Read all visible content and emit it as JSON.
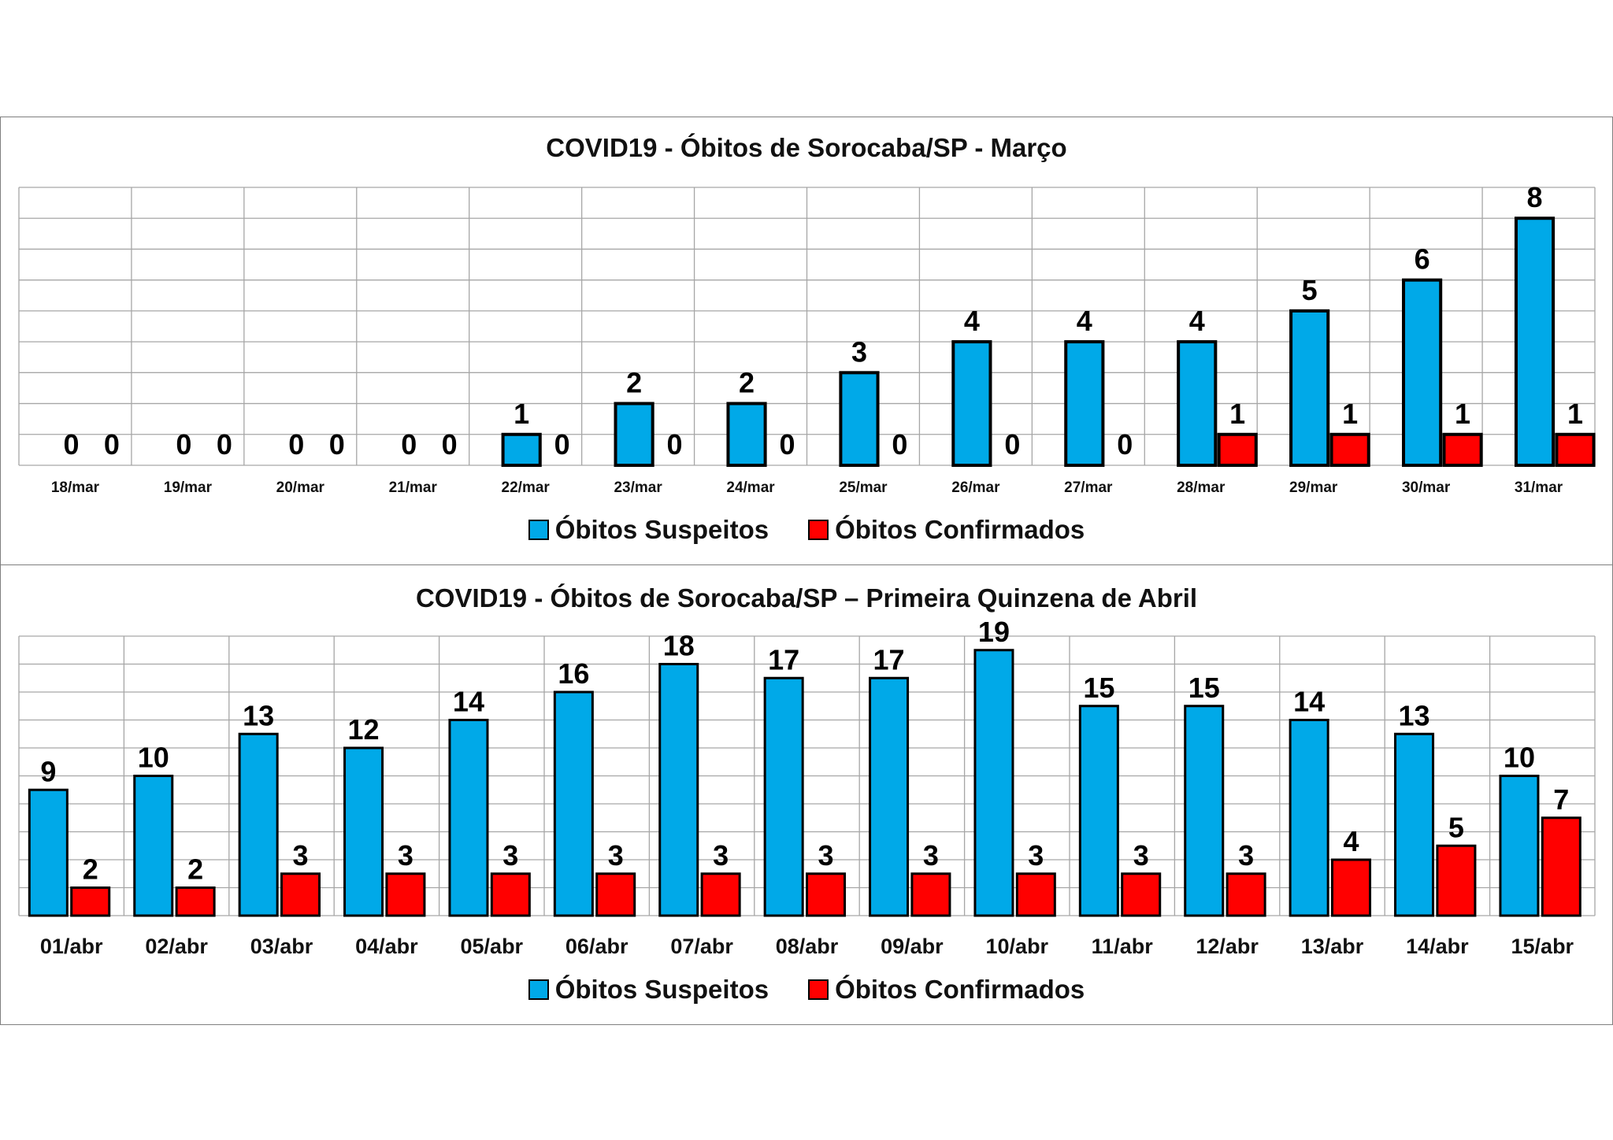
{
  "colors": {
    "suspeitos": "#00a9e8",
    "confirmados": "#ff0000",
    "grid": "#a6a6a6",
    "border": "#000000"
  },
  "chart_data": [
    {
      "type": "bar",
      "title": "COVID19 - Óbitos  de Sorocaba/SP - Março",
      "categories": [
        "18/mar",
        "19/mar",
        "20/mar",
        "21/mar",
        "22/mar",
        "23/mar",
        "24/mar",
        "25/mar",
        "26/mar",
        "27/mar",
        "28/mar",
        "29/mar",
        "30/mar",
        "31/mar"
      ],
      "series": [
        {
          "name": "Óbitos Suspeitos",
          "values": [
            0,
            0,
            0,
            0,
            1,
            2,
            2,
            3,
            4,
            4,
            4,
            5,
            6,
            8
          ]
        },
        {
          "name": "Óbitos Confirmados",
          "values": [
            0,
            0,
            0,
            0,
            0,
            0,
            0,
            0,
            0,
            0,
            1,
            1,
            1,
            1
          ]
        }
      ],
      "ylim": [
        0,
        9
      ],
      "grid": true,
      "legend": "bottom-center",
      "xlabel": "",
      "ylabel": ""
    },
    {
      "type": "bar",
      "title": "COVID19 - Óbitos  de Sorocaba/SP – Primeira Quinzena de Abril",
      "categories": [
        "01/abr",
        "02/abr",
        "03/abr",
        "04/abr",
        "05/abr",
        "06/abr",
        "07/abr",
        "08/abr",
        "09/abr",
        "10/abr",
        "11/abr",
        "12/abr",
        "13/abr",
        "14/abr",
        "15/abr"
      ],
      "series": [
        {
          "name": "Óbitos Suspeitos",
          "values": [
            9,
            10,
            13,
            12,
            14,
            16,
            18,
            17,
            17,
            19,
            15,
            15,
            14,
            13,
            10
          ]
        },
        {
          "name": "Óbitos Confirmados",
          "values": [
            2,
            2,
            3,
            3,
            3,
            3,
            3,
            3,
            3,
            3,
            3,
            3,
            4,
            5,
            7
          ]
        }
      ],
      "ylim": [
        0,
        20
      ],
      "grid": true,
      "legend": "bottom-center",
      "xlabel": "",
      "ylabel": ""
    }
  ]
}
